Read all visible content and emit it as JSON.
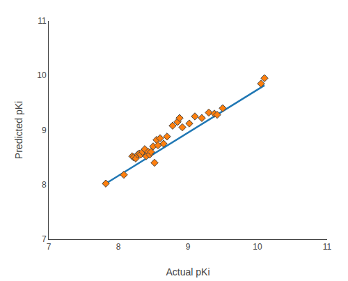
{
  "chart_data": {
    "type": "scatter",
    "xlabel": "Actual pKi",
    "ylabel": "Predicted pKi",
    "series": [
      {
        "type": "line",
        "x": [
          7.82,
          10.1
        ],
        "values": [
          8.02,
          9.82
        ]
      },
      {
        "type": "scatter",
        "marker": "diamond",
        "x": [
          7.82,
          8.08,
          8.2,
          8.22,
          8.25,
          8.28,
          8.3,
          8.32,
          8.35,
          8.38,
          8.4,
          8.43,
          8.45,
          8.47,
          8.5,
          8.52,
          8.55,
          8.57,
          8.6,
          8.65,
          8.7,
          8.78,
          8.85,
          8.88,
          8.92,
          9.02,
          9.1,
          9.2,
          9.3,
          9.38,
          9.42,
          9.5,
          10.05,
          10.1
        ],
        "values": [
          8.02,
          8.18,
          8.52,
          8.5,
          8.48,
          8.55,
          8.57,
          8.55,
          8.6,
          8.65,
          8.52,
          8.6,
          8.55,
          8.6,
          8.7,
          8.4,
          8.82,
          8.72,
          8.85,
          8.75,
          8.88,
          9.08,
          9.15,
          9.22,
          9.05,
          9.12,
          9.25,
          9.22,
          9.32,
          9.3,
          9.28,
          9.4,
          9.85,
          9.95
        ]
      }
    ],
    "xlim": [
      7,
      11
    ],
    "ylim": [
      7,
      11
    ],
    "xticks": [
      7,
      8,
      9,
      10,
      11
    ],
    "yticks": [
      7,
      8,
      9,
      10,
      11
    ],
    "grid": false
  }
}
